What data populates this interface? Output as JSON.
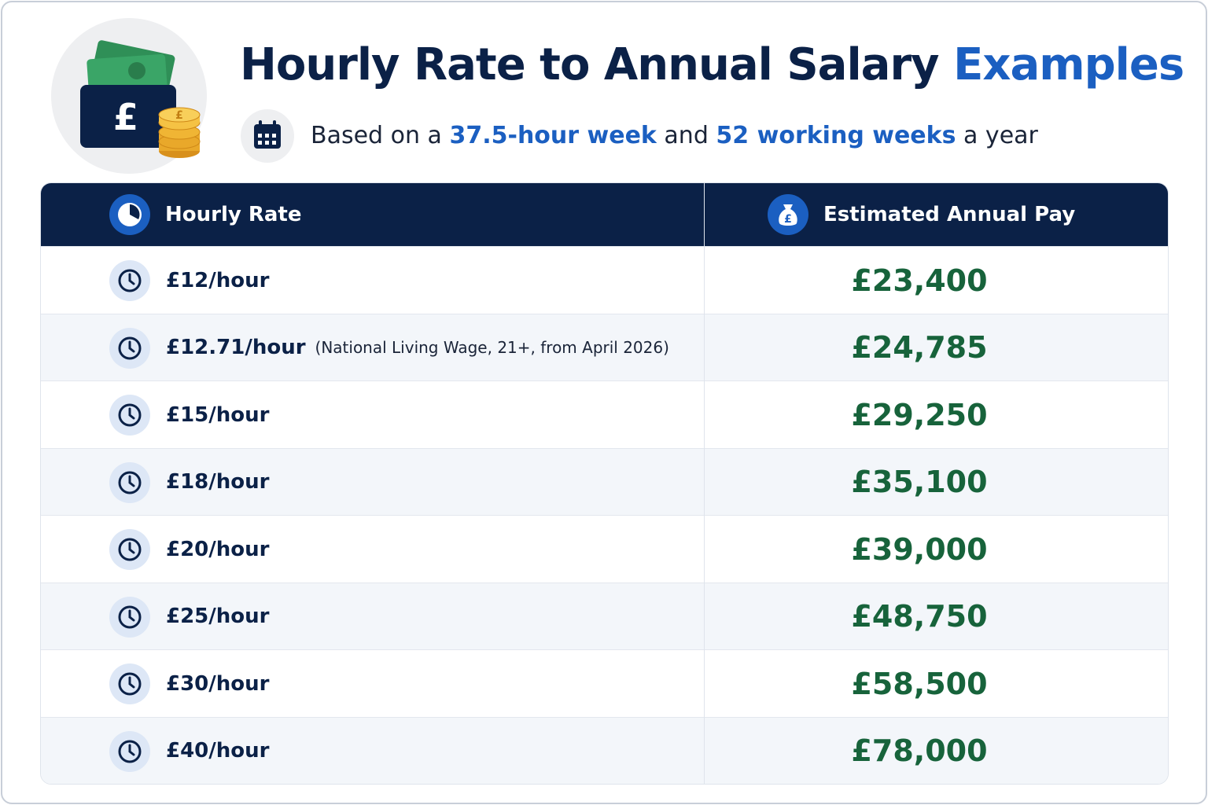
{
  "header": {
    "title": {
      "main": "Hourly Rate to Annual Salary",
      "highlight": "Examples"
    },
    "subtitle": {
      "parts": [
        "Based on a",
        "37.5-hour week",
        "and",
        "52 working weeks",
        "a year"
      ]
    }
  },
  "table": {
    "columns": [
      "Hourly Rate",
      "Estimated Annual Pay"
    ],
    "rows": [
      {
        "rate": "£12/hour",
        "pay": "£23,400"
      },
      {
        "rate": "£12.71/hour",
        "note": "(National Living Wage, 21+, from April 2026)",
        "pay": "£24,785"
      },
      {
        "rate": "£15/hour",
        "pay": "£29,250"
      },
      {
        "rate": "£18/hour",
        "pay": "£35,100"
      },
      {
        "rate": "£20/hour",
        "pay": "£39,000"
      },
      {
        "rate": "£25/hour",
        "pay": "£48,750"
      },
      {
        "rate": "£30/hour",
        "pay": "£58,500"
      },
      {
        "rate": "£40/hour",
        "pay": "£78,000"
      }
    ]
  }
}
